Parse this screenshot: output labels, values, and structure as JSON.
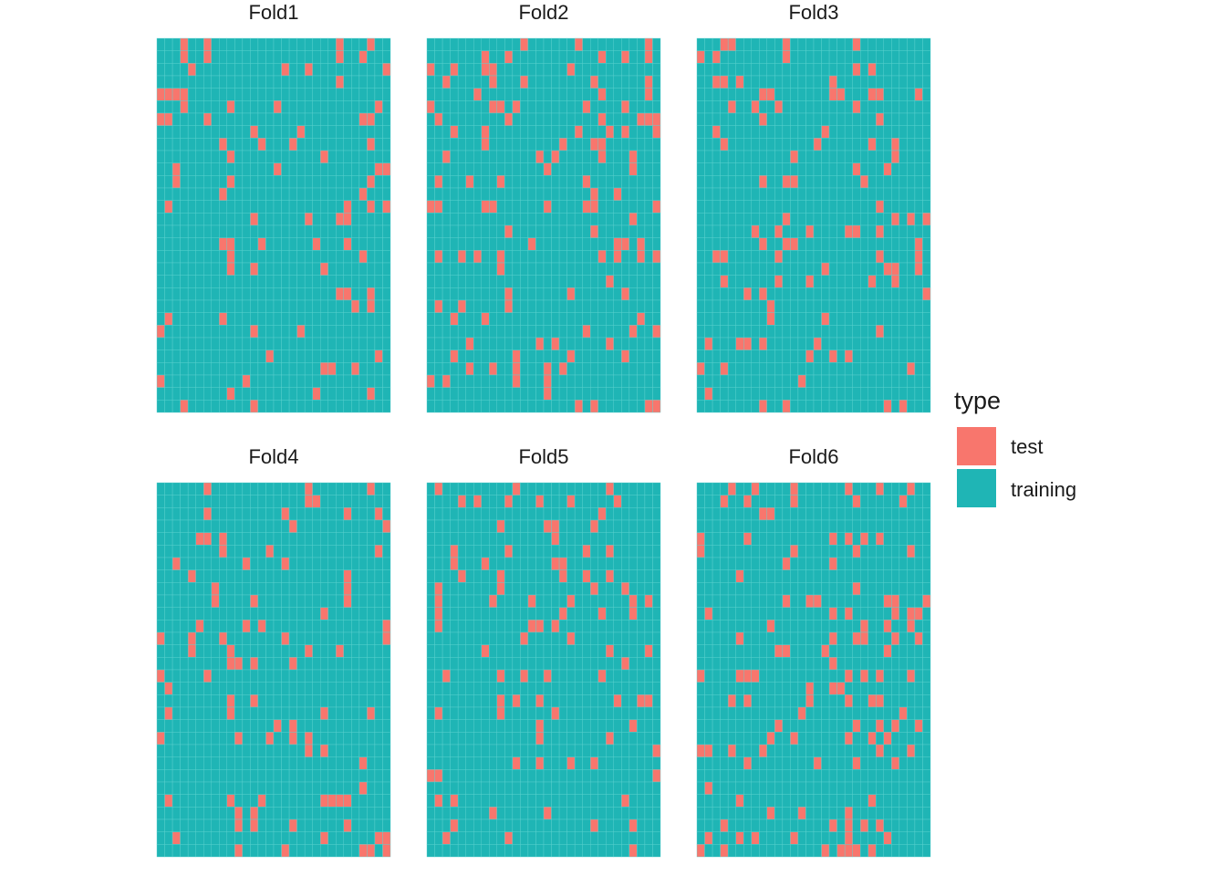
{
  "chart_data": {
    "type": "heatmap",
    "grid": {
      "cols": 30,
      "rows": 30
    },
    "colors": {
      "test": "#F8766D",
      "training": "#1FB5B5",
      "gridline": "#5fd3d0"
    },
    "legend": {
      "title": "type",
      "placement": "right",
      "entries": [
        {
          "key": "test",
          "label": "test"
        },
        {
          "key": "training",
          "label": "training"
        }
      ]
    },
    "panels": [
      {
        "title": "Fold1",
        "seed": 11,
        "test_fraction": 0.1
      },
      {
        "title": "Fold2",
        "seed": 23,
        "test_fraction": 0.1
      },
      {
        "title": "Fold3",
        "seed": 37,
        "test_fraction": 0.1
      },
      {
        "title": "Fold4",
        "seed": 41,
        "test_fraction": 0.1
      },
      {
        "title": "Fold5",
        "seed": 53,
        "test_fraction": 0.1
      },
      {
        "title": "Fold6",
        "seed": 67,
        "test_fraction": 0.1
      }
    ]
  }
}
